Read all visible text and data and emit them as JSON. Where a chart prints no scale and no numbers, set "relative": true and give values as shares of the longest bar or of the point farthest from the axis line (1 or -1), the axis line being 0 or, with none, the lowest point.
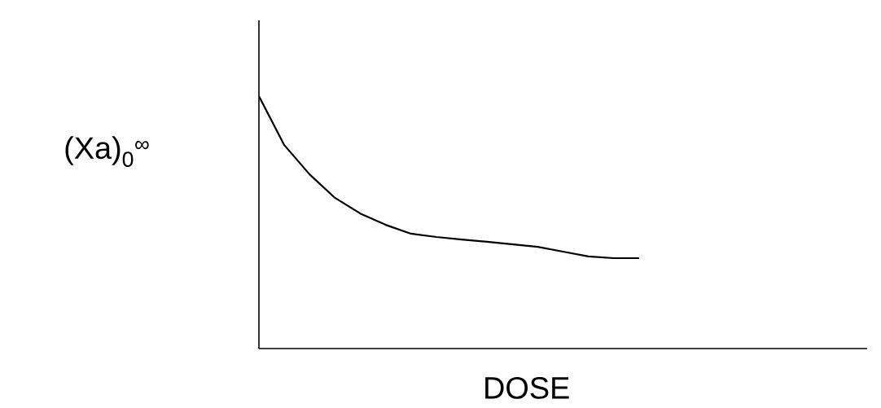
{
  "chart_data": {
    "type": "line",
    "relative": true,
    "xlabel": "DOSE",
    "ylabel": "(Xa)$_{0}$$^{∞}$",
    "categories": [
      null,
      null,
      null,
      null,
      null,
      null,
      null,
      null,
      null,
      null,
      null,
      null,
      null,
      null,
      null,
      null,
      null,
      null,
      null,
      null,
      null,
      null,
      null,
      null,
      null
    ],
    "series": [
      {
        "color": "#000000",
        "values": [
          1.0,
          0.806,
          0.69,
          0.597,
          0.535,
          0.49,
          0.455,
          0.442,
          0.432,
          0.423,
          0.413,
          0.403,
          0.384,
          0.365,
          0.358,
          0.358,
          null,
          null,
          null,
          null,
          null,
          null,
          null,
          null,
          null
        ]
      }
    ]
  }
}
